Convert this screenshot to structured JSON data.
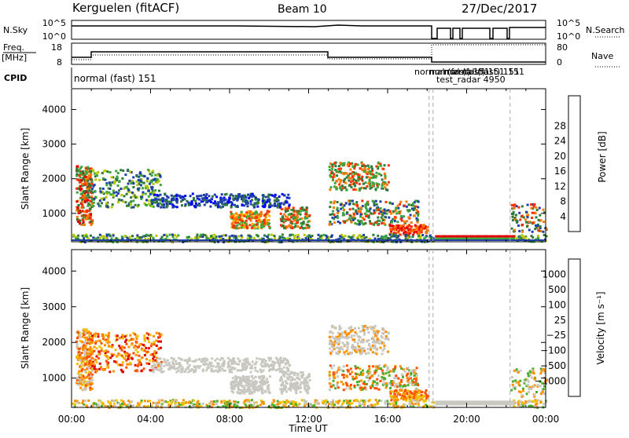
{
  "header": {
    "station": "Kerguelen (fitACF)",
    "beam": "Beam 10",
    "date": "27/Dec/2017"
  },
  "top_panels": {
    "nsky_label": "N.Sky",
    "nsky_ticks": [
      "10^5",
      "10^0"
    ],
    "nsearch_label": "N.Search",
    "nsearch_ticks": [
      "10^5",
      "10^0"
    ],
    "freq_label_1": "Freq.",
    "freq_label_2": "[MHz]",
    "freq_ticks": [
      "18",
      "8"
    ],
    "nave_label": "Nave",
    "nave_ticks": [
      "80",
      "0"
    ],
    "cpid_label": "CPID",
    "cpid_entries": [
      "normal (fast) 151",
      "normal (fast) 151",
      "normal (fast) 151",
      "normal (fast) 151",
      "151",
      "test_radar 4950"
    ]
  },
  "colors": {
    "power_scale": [
      "#0000ff",
      "#1e3fa8",
      "#2f7a3a",
      "#3ca53c",
      "#b8c800",
      "#ffb000",
      "#ff7a00",
      "#ff3000",
      "#e00000"
    ],
    "velocity_scale": [
      "#e00000",
      "#ff5000",
      "#ff9000",
      "#f0c000",
      "#c8c8c0",
      "#c8c8c0",
      "#4caf2a",
      "#2f7a3a",
      "#1e5fa8",
      "#1a3fa0"
    ]
  },
  "chart_data": [
    {
      "type": "heatmap",
      "title": "Power",
      "xlabel": "",
      "ylabel": "Slant Range [km]",
      "x_ticks": [
        "00:00",
        "04:00",
        "08:00",
        "12:00",
        "16:00",
        "20:00",
        "00:00"
      ],
      "xlim_hours": [
        0,
        24
      ],
      "y_ticks": [
        "1000",
        "2000",
        "3000",
        "4000"
      ],
      "ylim_km": [
        180,
        4600
      ],
      "colorbar_label": "Power [dB]",
      "colorbar_ticks": [
        "4",
        "8",
        "12",
        "16",
        "20",
        "24",
        "28"
      ],
      "colorbar_range": [
        0,
        32
      ]
    },
    {
      "type": "heatmap",
      "title": "Velocity",
      "xlabel": "Time UT",
      "ylabel": "Slant Range [km]",
      "x_ticks": [
        "00:00",
        "04:00",
        "08:00",
        "12:00",
        "16:00",
        "20:00",
        "00:00"
      ],
      "xlim_hours": [
        0,
        24
      ],
      "y_ticks": [
        "1000",
        "2000",
        "3000",
        "4000"
      ],
      "ylim_km": [
        180,
        4600
      ],
      "colorbar_label": "Velocity [m s⁻¹]",
      "colorbar_ticks": [
        "1000",
        "500",
        "100",
        "25",
        "−25",
        "−100",
        "−500",
        "−1000"
      ]
    }
  ]
}
